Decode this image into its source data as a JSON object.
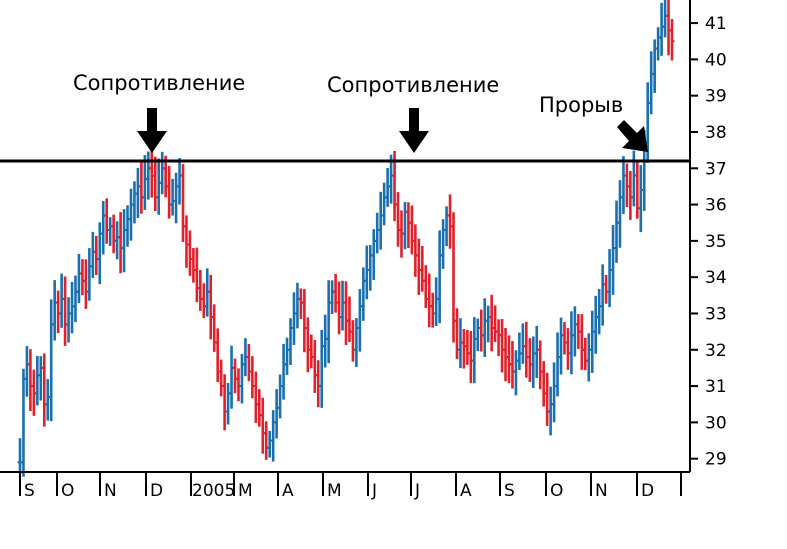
{
  "chart_data": {
    "type": "bar",
    "style": "ohlc",
    "colors": {
      "up": "#1a6fae",
      "down": "#e0202a",
      "resistance_line": "#000000",
      "axis": "#000000"
    },
    "x_ticks": [
      "S",
      "O",
      "N",
      "D",
      "2005",
      "M",
      "A",
      "M",
      "J",
      "J",
      "A",
      "S",
      "O",
      "N",
      "D"
    ],
    "y_ticks": [
      29,
      30,
      31,
      32,
      33,
      34,
      35,
      36,
      37,
      38,
      39,
      40,
      41
    ],
    "ylim": [
      28.6,
      41.8
    ],
    "y_axis_position": "right",
    "grid": false,
    "resistance_level": 37.2,
    "annotations": [
      {
        "text": "Сопротивление",
        "anchor": "D",
        "arrow": "down"
      },
      {
        "text": "Сопротивление",
        "anchor": "J",
        "arrow": "down"
      },
      {
        "text": "Прорыв",
        "anchor": "N",
        "arrow": "down-right"
      }
    ],
    "series": [
      {
        "values": [
          28.9,
          31.2,
          31.6,
          31.0,
          30.8,
          31.3,
          31.5,
          30.5,
          30.7,
          32.7,
          33.3,
          33.0,
          33.4,
          32.7,
          33.0,
          33.2,
          33.6,
          34.1,
          33.9,
          33.6,
          34.3,
          34.7,
          34.5,
          35.2,
          35.7,
          35.3,
          35.4,
          35.0,
          35.1,
          34.8,
          35.3,
          35.6,
          36.0,
          36.3,
          36.5,
          36.2,
          36.7,
          37.0,
          36.8,
          36.2,
          36.6,
          37.0,
          36.5,
          36.0,
          36.1,
          36.5,
          36.8,
          35.4,
          34.9,
          34.5,
          34.2,
          33.7,
          33.4,
          33.2,
          33.6,
          32.9,
          32.2,
          31.4,
          31.0,
          30.3,
          30.8,
          31.5,
          31.2,
          31.0,
          31.6,
          31.8,
          31.4,
          31.0,
          30.5,
          30.2,
          29.7,
          29.3,
          29.5,
          30.0,
          30.4,
          31.0,
          31.6,
          32.0,
          32.6,
          33.0,
          33.4,
          33.3,
          32.6,
          32.0,
          31.8,
          31.3,
          31.0,
          32.1,
          32.3,
          33.3,
          33.6,
          33.3,
          32.9,
          33.3,
          32.8,
          32.5,
          32.0,
          32.6,
          33.2,
          33.9,
          34.2,
          34.6,
          35.0,
          35.3,
          35.7,
          36.2,
          36.5,
          36.8,
          36.0,
          35.3,
          35.2,
          35.8,
          35.5,
          35.0,
          34.6,
          34.2,
          33.9,
          33.4,
          33.2,
          33.0,
          33.4,
          34.6,
          35.3,
          35.7,
          35.4,
          32.8,
          32.0,
          32.2,
          32.1,
          31.9,
          31.7,
          32.3,
          32.6,
          32.4,
          32.8,
          32.9,
          32.6,
          32.5,
          32.4,
          32.0,
          31.8,
          31.6,
          31.4,
          31.7,
          31.9,
          32.1,
          31.8,
          31.6,
          31.9,
          32.0,
          31.4,
          30.8,
          30.3,
          30.5,
          31.0,
          31.8,
          32.4,
          32.2,
          31.9,
          32.4,
          32.7,
          32.5,
          32.0,
          31.7,
          32.0,
          32.5,
          32.9,
          33.2,
          33.8,
          33.6,
          34.2,
          34.8,
          35.5,
          36.2,
          36.8,
          36.5,
          36.2,
          36.8,
          35.9,
          36.4,
          37.6,
          38.8,
          39.6,
          40.3,
          40.6,
          40.9,
          41.2,
          40.8,
          40.5
        ]
      }
    ]
  }
}
